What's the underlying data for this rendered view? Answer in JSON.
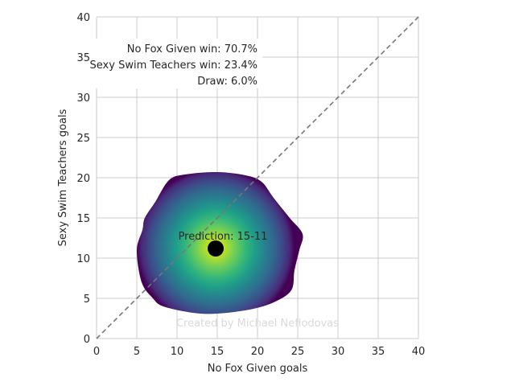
{
  "chart_data": {
    "type": "heatmap",
    "xlabel": "No Fox Given goals",
    "ylabel": "Sexy Swim Teachers goals",
    "xlim": [
      0,
      40
    ],
    "ylim": [
      0,
      40
    ],
    "x_ticks": [
      "0",
      "5",
      "10",
      "15",
      "20",
      "25",
      "30",
      "35",
      "40"
    ],
    "y_ticks": [
      "0",
      "5",
      "10",
      "15",
      "20",
      "25",
      "30",
      "35",
      "40"
    ],
    "grid": true,
    "colormap": "viridis",
    "density": {
      "center": [
        14.8,
        11.3
      ],
      "boundary": [
        [
          5.0,
          11.0
        ],
        [
          5.6,
          7.0
        ],
        [
          7.0,
          5.0
        ],
        [
          8.3,
          4.0
        ],
        [
          12.0,
          3.2
        ],
        [
          15.0,
          3.1
        ],
        [
          19.0,
          3.6
        ],
        [
          22.0,
          4.5
        ],
        [
          24.2,
          6.0
        ],
        [
          24.6,
          8.5
        ],
        [
          25.2,
          11.0
        ],
        [
          25.6,
          13.0
        ],
        [
          24.0,
          15.0
        ],
        [
          22.0,
          17.5
        ],
        [
          20.5,
          19.5
        ],
        [
          18.5,
          20.3
        ],
        [
          15.0,
          20.7
        ],
        [
          11.0,
          20.4
        ],
        [
          9.0,
          19.7
        ],
        [
          7.3,
          17.0
        ],
        [
          6.0,
          15.0
        ],
        [
          5.7,
          13.5
        ]
      ]
    },
    "prediction_point": {
      "x": 14.8,
      "y": 11.2,
      "color": "#000000"
    },
    "prediction_label": "Prediction: 15-11",
    "diagonal": {
      "from": [
        0,
        0
      ],
      "to": [
        40,
        40
      ],
      "style": "dashed",
      "color": "#777777"
    },
    "win_probabilities": [
      "No Fox Given win: 70.7%",
      "Sexy Swim Teachers win: 23.4%",
      "Draw: 6.0%"
    ],
    "watermark": "Created by Michael Nefiodovas"
  }
}
